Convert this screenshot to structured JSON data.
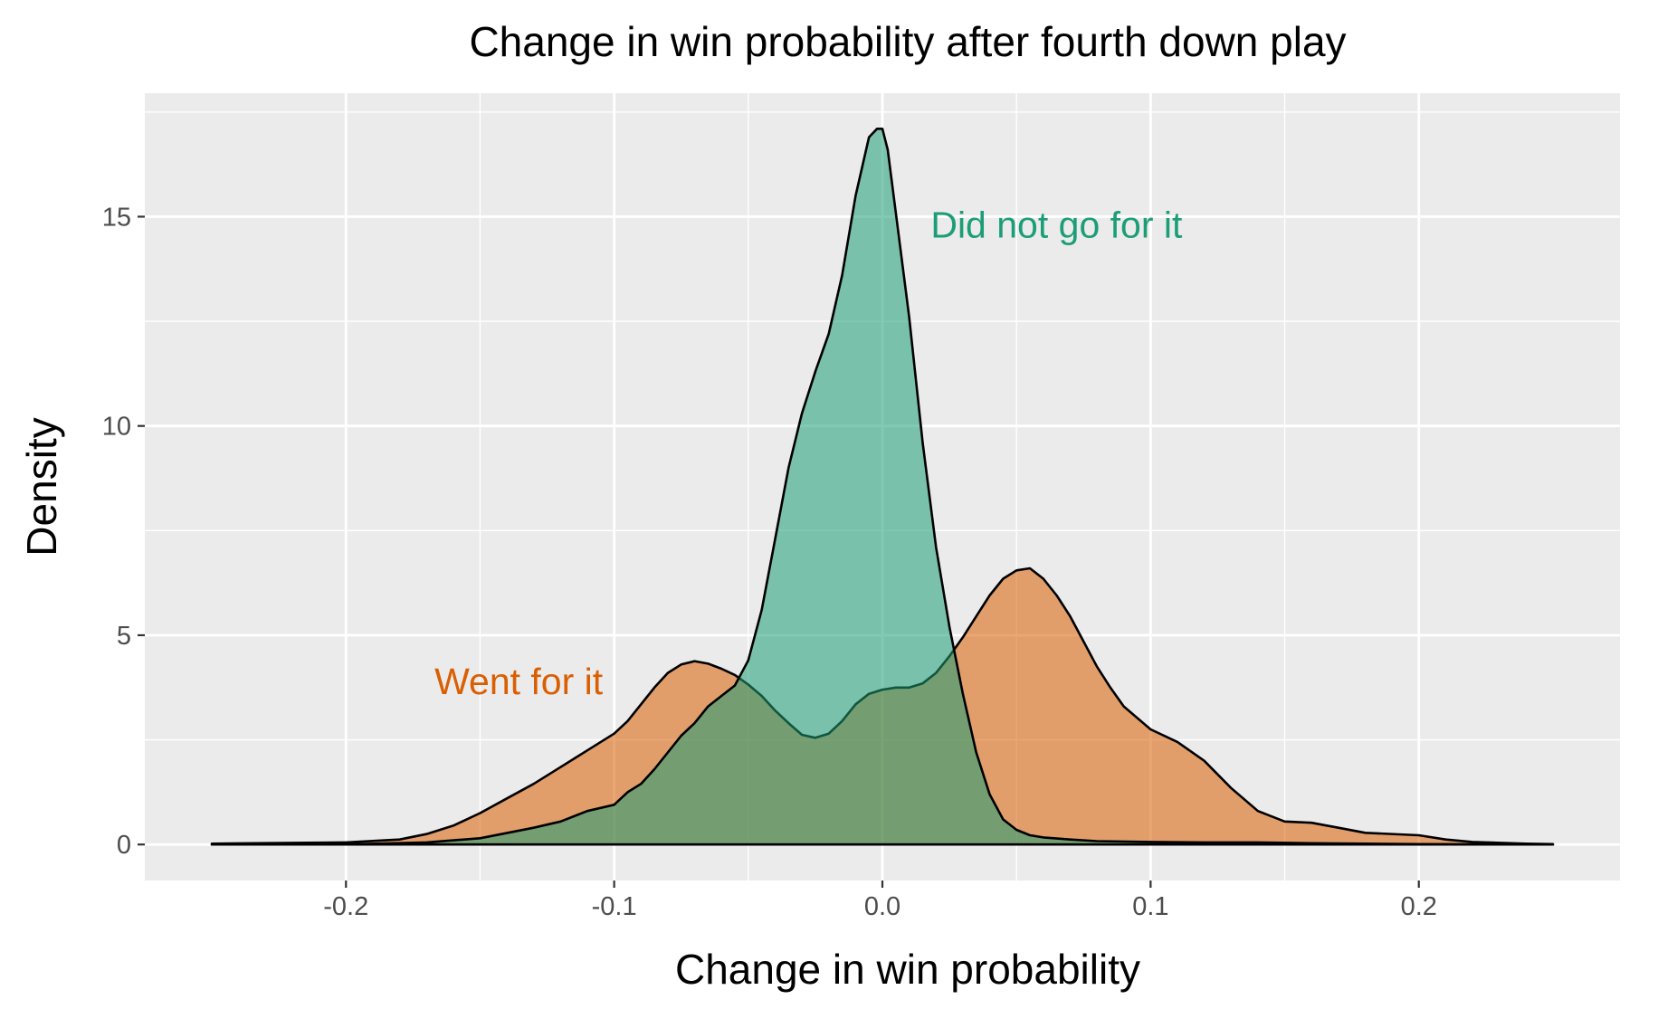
{
  "chart_data": {
    "type": "area",
    "subtype": "density",
    "title": "Change in win probability after fourth down play",
    "xlabel": "Change in win probability",
    "ylabel": "Density",
    "xlim": [
      -0.275,
      0.275
    ],
    "ylim": [
      -0.86,
      17.95
    ],
    "x_ticks": [
      -0.2,
      -0.1,
      0.0,
      0.1,
      0.2
    ],
    "x_tick_labels": [
      "-0.2",
      "-0.1",
      "0.0",
      "0.1",
      "0.2"
    ],
    "y_ticks": [
      0,
      5,
      10,
      15
    ],
    "y_tick_labels": [
      "0",
      "5",
      "10",
      "15"
    ],
    "grid": true,
    "legend": "none",
    "series": [
      {
        "name": "Went for it",
        "color": "#d95f02",
        "fill_opacity": 0.55,
        "x": [
          -0.25,
          -0.2,
          -0.18,
          -0.17,
          -0.16,
          -0.15,
          -0.14,
          -0.13,
          -0.12,
          -0.11,
          -0.1,
          -0.095,
          -0.09,
          -0.085,
          -0.08,
          -0.075,
          -0.07,
          -0.065,
          -0.06,
          -0.055,
          -0.05,
          -0.045,
          -0.04,
          -0.035,
          -0.03,
          -0.025,
          -0.02,
          -0.015,
          -0.01,
          -0.005,
          0.0,
          0.005,
          0.01,
          0.015,
          0.02,
          0.025,
          0.03,
          0.035,
          0.04,
          0.045,
          0.05,
          0.055,
          0.06,
          0.065,
          0.07,
          0.075,
          0.08,
          0.085,
          0.09,
          0.1,
          0.11,
          0.12,
          0.13,
          0.14,
          0.15,
          0.16,
          0.17,
          0.18,
          0.2,
          0.21,
          0.22,
          0.24,
          0.25
        ],
        "y": [
          0.02,
          0.05,
          0.12,
          0.25,
          0.45,
          0.75,
          1.1,
          1.45,
          1.85,
          2.25,
          2.65,
          2.95,
          3.35,
          3.75,
          4.1,
          4.3,
          4.38,
          4.32,
          4.2,
          4.05,
          3.82,
          3.55,
          3.2,
          2.9,
          2.62,
          2.55,
          2.65,
          2.95,
          3.35,
          3.6,
          3.7,
          3.75,
          3.75,
          3.85,
          4.1,
          4.5,
          4.95,
          5.45,
          5.95,
          6.35,
          6.55,
          6.6,
          6.35,
          5.95,
          5.45,
          4.85,
          4.25,
          3.75,
          3.3,
          2.75,
          2.45,
          2.0,
          1.35,
          0.8,
          0.55,
          0.52,
          0.4,
          0.28,
          0.22,
          0.12,
          0.06,
          0.02,
          0.01
        ]
      },
      {
        "name": "Did not go for it",
        "color": "#1b9e77",
        "fill_opacity": 0.55,
        "x": [
          -0.25,
          -0.2,
          -0.17,
          -0.15,
          -0.13,
          -0.12,
          -0.11,
          -0.1,
          -0.095,
          -0.09,
          -0.085,
          -0.08,
          -0.075,
          -0.07,
          -0.065,
          -0.06,
          -0.055,
          -0.05,
          -0.045,
          -0.04,
          -0.035,
          -0.03,
          -0.025,
          -0.02,
          -0.015,
          -0.01,
          -0.005,
          -0.002,
          0.0,
          0.002,
          0.005,
          0.01,
          0.015,
          0.02,
          0.025,
          0.03,
          0.035,
          0.04,
          0.045,
          0.05,
          0.055,
          0.06,
          0.07,
          0.08,
          0.1,
          0.12,
          0.14,
          0.16,
          0.2,
          0.25
        ],
        "y": [
          0.0,
          0.0,
          0.05,
          0.15,
          0.4,
          0.55,
          0.8,
          0.95,
          1.25,
          1.45,
          1.8,
          2.2,
          2.6,
          2.9,
          3.3,
          3.55,
          3.8,
          4.4,
          5.6,
          7.3,
          9.0,
          10.3,
          11.3,
          12.2,
          13.6,
          15.5,
          16.9,
          17.1,
          17.1,
          16.6,
          15.1,
          12.6,
          9.6,
          7.1,
          5.2,
          3.6,
          2.2,
          1.2,
          0.6,
          0.35,
          0.22,
          0.17,
          0.12,
          0.08,
          0.06,
          0.05,
          0.05,
          0.03,
          0.01,
          0.0
        ]
      }
    ],
    "annotations": [
      {
        "text": "Did not go for it",
        "x": 0.018,
        "y": 14.8,
        "color": "#1b9e77"
      },
      {
        "text": "Went for it",
        "x": -0.167,
        "y": 3.9,
        "color": "#d95f02"
      }
    ]
  }
}
